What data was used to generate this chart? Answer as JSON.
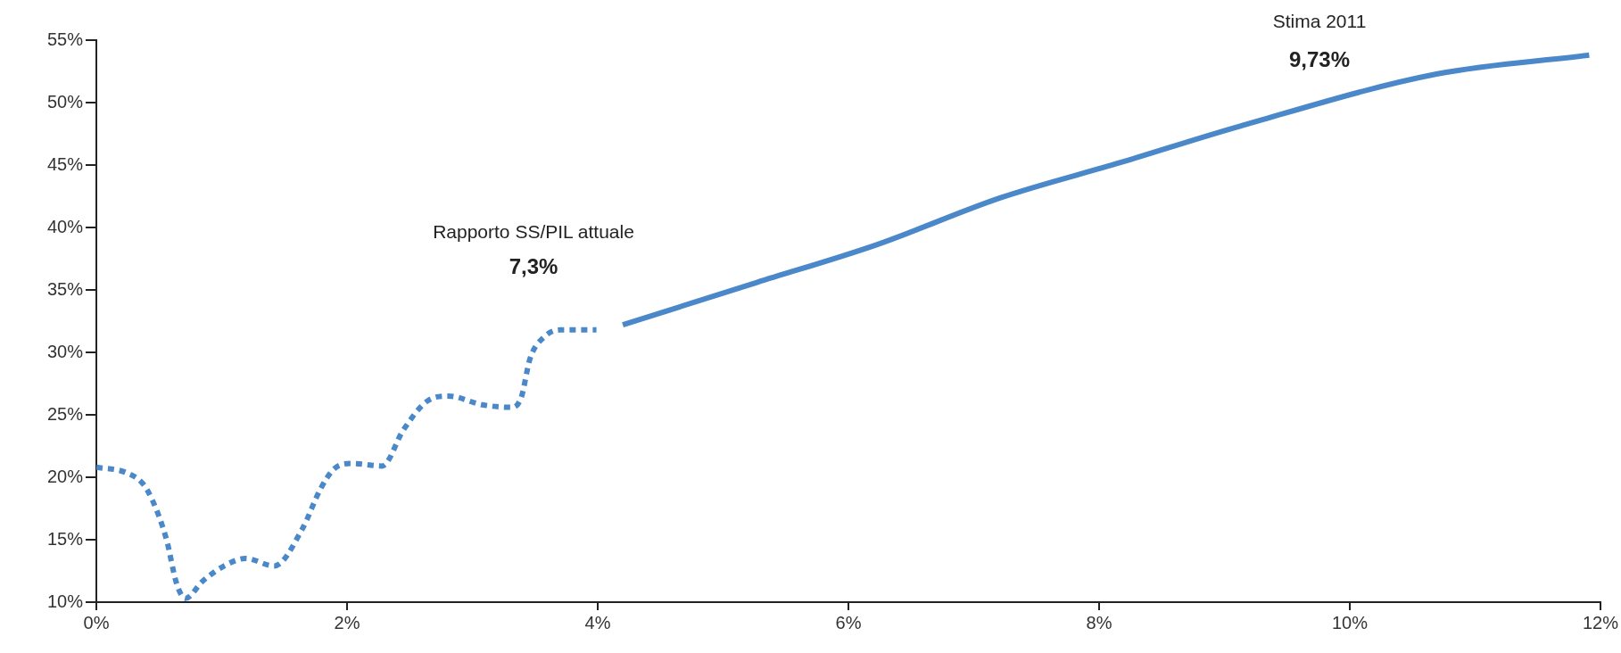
{
  "chart_data": {
    "type": "line",
    "xlim": [
      0,
      12
    ],
    "ylim": [
      10,
      55
    ],
    "xticks": [
      {
        "value": 0,
        "label": "0%"
      },
      {
        "value": 2,
        "label": "2%"
      },
      {
        "value": 4,
        "label": "4%"
      },
      {
        "value": 6,
        "label": "6%"
      },
      {
        "value": 8,
        "label": "8%"
      },
      {
        "value": 10,
        "label": "10%"
      },
      {
        "value": 12,
        "label": "12%"
      }
    ],
    "yticks": [
      {
        "value": 10,
        "label": "10%"
      },
      {
        "value": 15,
        "label": "15%"
      },
      {
        "value": 20,
        "label": "20%"
      },
      {
        "value": 25,
        "label": "25%"
      },
      {
        "value": 30,
        "label": "30%"
      },
      {
        "value": 35,
        "label": "35%"
      },
      {
        "value": 40,
        "label": "40%"
      },
      {
        "value": 45,
        "label": "45%"
      },
      {
        "value": 50,
        "label": "50%"
      },
      {
        "value": 55,
        "label": "55%"
      }
    ],
    "series": [
      {
        "color": "#4a88c9",
        "line_style": "dotted",
        "x": [
          0,
          0.23,
          0.37,
          0.45,
          0.56,
          0.64,
          0.71,
          0.85,
          1.02,
          1.19,
          1.42,
          1.64,
          1.79,
          1.9,
          2.04,
          2.28,
          2.45,
          2.64,
          2.81,
          3.08,
          3.32,
          3.39,
          3.46,
          3.58,
          3.7,
          3.99
        ],
        "values": [
          20.8,
          20.4,
          19.5,
          18.1,
          15,
          11.5,
          10.3,
          11.7,
          12.9,
          13.5,
          12.9,
          15.8,
          19.1,
          20.7,
          21.1,
          20.9,
          23.8,
          26.1,
          26.5,
          25.8,
          25.6,
          26.4,
          29.5,
          31.3,
          31.8,
          31.8
        ]
      },
      {
        "color": "#4a88c9",
        "line_style": "solid",
        "x": [
          4.2,
          5.27,
          6.22,
          7.22,
          8.17,
          9.12,
          10.7,
          11.91
        ],
        "values": [
          32.2,
          35.6,
          38.6,
          42.4,
          45.2,
          48.1,
          52.3,
          53.8
        ]
      }
    ],
    "annotations": [
      "Rapporto SS/PIL attuale",
      "7,3%",
      "Stima 2011",
      "9,73%"
    ]
  }
}
